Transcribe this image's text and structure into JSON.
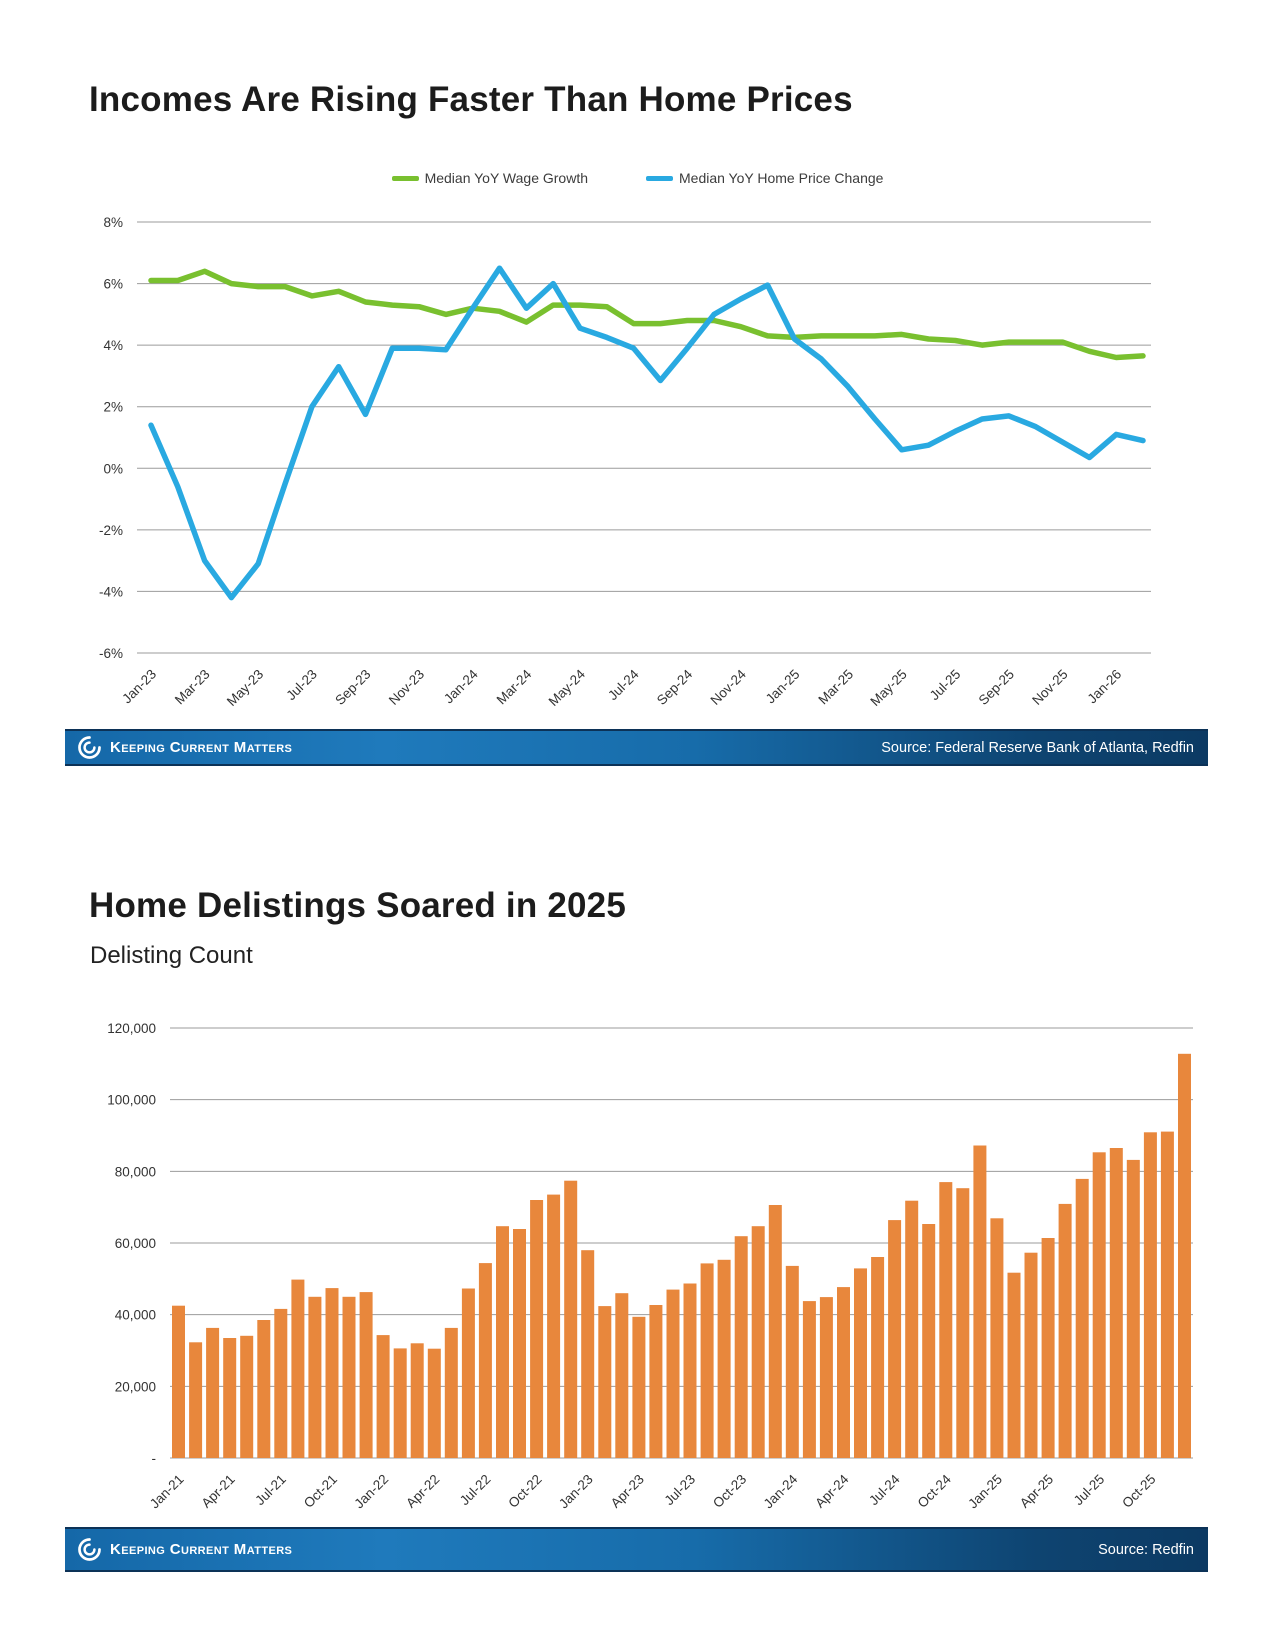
{
  "footer": {
    "brand": "Keeping Current Matters"
  },
  "chart_data": [
    {
      "type": "line",
      "title": "Incomes Are Rising Faster Than Home Prices",
      "x": [
        "Jan-23",
        "Feb-23",
        "Mar-23",
        "Apr-23",
        "May-23",
        "Jun-23",
        "Jul-23",
        "Aug-23",
        "Sep-23",
        "Oct-23",
        "Nov-23",
        "Dec-23",
        "Jan-24",
        "Feb-24",
        "Mar-24",
        "Apr-24",
        "May-24",
        "Jun-24",
        "Jul-24",
        "Aug-24",
        "Sep-24",
        "Oct-24",
        "Nov-24",
        "Dec-24",
        "Jan-25",
        "Feb-25",
        "Mar-25",
        "Apr-25",
        "May-25",
        "Jun-25",
        "Jul-25",
        "Aug-25",
        "Sep-25",
        "Oct-25",
        "Nov-25",
        "Dec-25",
        "Jan-26",
        "Feb-26"
      ],
      "x_tick_labels": [
        "Jan-23",
        "Mar-23",
        "May-23",
        "Jul-23",
        "Sep-23",
        "Nov-23",
        "Jan-24",
        "Mar-24",
        "May-24",
        "Jul-24",
        "Sep-24",
        "Nov-24",
        "Jan-25",
        "Mar-25",
        "May-25",
        "Jul-25",
        "Sep-25",
        "Nov-25",
        "Jan-26"
      ],
      "series": [
        {
          "name": "Median YoY Wage Growth",
          "color": "#79c02f",
          "values": [
            6.1,
            6.1,
            6.4,
            6.0,
            5.9,
            5.9,
            5.6,
            5.75,
            5.4,
            5.3,
            5.25,
            5.0,
            5.2,
            5.1,
            4.75,
            5.3,
            5.3,
            5.25,
            4.7,
            4.7,
            4.8,
            4.8,
            4.6,
            4.3,
            4.25,
            4.3,
            4.3,
            4.3,
            4.35,
            4.2,
            4.15,
            4.0,
            4.1,
            4.1,
            4.1,
            3.8,
            3.6,
            3.65
          ]
        },
        {
          "name": "Median YoY Home Price Change",
          "color": "#29a9e1",
          "values": [
            1.4,
            -0.6,
            -3.0,
            -4.2,
            -3.1,
            -0.5,
            2.0,
            3.3,
            1.75,
            3.9,
            3.9,
            3.85,
            5.2,
            6.5,
            5.2,
            6.0,
            4.55,
            4.25,
            3.9,
            2.85,
            3.9,
            5.0,
            5.5,
            5.95,
            4.2,
            3.55,
            2.65,
            1.6,
            0.6,
            0.75,
            1.2,
            1.6,
            1.7,
            1.35,
            0.85,
            0.35,
            1.1,
            0.9
          ]
        }
      ],
      "ylim": [
        -6,
        8
      ],
      "ytick_step": 2,
      "ytick_labels": [
        "8%",
        "6%",
        "4%",
        "2%",
        "0%",
        "-2%",
        "-4%",
        "-6%"
      ],
      "grid": true,
      "legend_position": "top-center",
      "source": "Source: Federal Reserve Bank of Atlanta, Redfin"
    },
    {
      "type": "bar",
      "title": "Home Delistings Soared in 2025",
      "subtitle": "Delisting Count",
      "bar_color": "#e8873c",
      "categories": [
        "Jan-21",
        "Feb-21",
        "Mar-21",
        "Apr-21",
        "May-21",
        "Jun-21",
        "Jul-21",
        "Aug-21",
        "Sep-21",
        "Oct-21",
        "Nov-21",
        "Dec-21",
        "Jan-22",
        "Feb-22",
        "Mar-22",
        "Apr-22",
        "May-22",
        "Jun-22",
        "Jul-22",
        "Aug-22",
        "Sep-22",
        "Oct-22",
        "Nov-22",
        "Dec-22",
        "Jan-23",
        "Feb-23",
        "Mar-23",
        "Apr-23",
        "May-23",
        "Jun-23",
        "Jul-23",
        "Aug-23",
        "Sep-23",
        "Oct-23",
        "Nov-23",
        "Dec-23",
        "Jan-24",
        "Feb-24",
        "Mar-24",
        "Apr-24",
        "May-24",
        "Jun-24",
        "Jul-24",
        "Aug-24",
        "Sep-24",
        "Oct-24",
        "Nov-24",
        "Dec-24",
        "Jan-25",
        "Feb-25",
        "Mar-25",
        "Apr-25",
        "May-25",
        "Jun-25",
        "Jul-25",
        "Aug-25",
        "Sep-25",
        "Oct-25",
        "Nov-25",
        "Dec-25"
      ],
      "x_tick_labels": [
        "Jan-21",
        "Apr-21",
        "Jul-21",
        "Oct-21",
        "Jan-22",
        "Apr-22",
        "Jul-22",
        "Oct-22",
        "Jan-23",
        "Apr-23",
        "Jul-23",
        "Oct-23",
        "Jan-24",
        "Apr-24",
        "Jul-24",
        "Oct-24",
        "Jan-25",
        "Apr-25",
        "Jul-25",
        "Oct-25"
      ],
      "values": [
        42500,
        32300,
        36300,
        33500,
        34100,
        38500,
        41600,
        49800,
        45000,
        47400,
        45000,
        46300,
        34300,
        30600,
        32000,
        30500,
        36300,
        47300,
        54400,
        64700,
        63900,
        72000,
        73500,
        77400,
        58000,
        42400,
        46000,
        39400,
        42700,
        47000,
        48700,
        54300,
        55300,
        61900,
        64700,
        70600,
        53600,
        43800,
        44900,
        47700,
        52900,
        56100,
        66400,
        71800,
        65300,
        77000,
        75300,
        87200,
        66900,
        51700,
        57300,
        61400,
        70900,
        77900,
        85300,
        86500,
        83200,
        90900,
        91100,
        112800
      ],
      "ylim": [
        0,
        120000
      ],
      "ytick_step": 20000,
      "ytick_labels": [
        "120,000",
        "100,000",
        "80,000",
        "60,000",
        "40,000",
        "20,000",
        "-"
      ],
      "grid": true,
      "source": "Source: Redfin"
    }
  ]
}
